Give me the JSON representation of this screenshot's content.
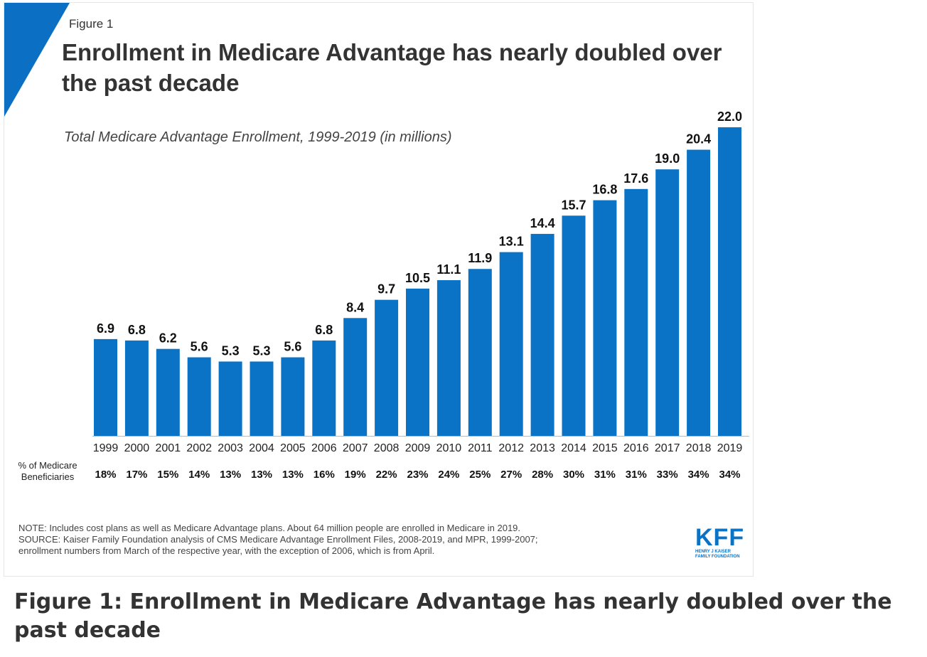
{
  "figure_label": "Figure 1",
  "title": "Enrollment in Medicare Advantage has nearly doubled over the past decade",
  "chart_data": {
    "type": "bar",
    "title": "Enrollment in Medicare Advantage has nearly doubled over the past decade",
    "subtitle": "Total Medicare Advantage Enrollment, 1999-2019 (in millions)",
    "categories": [
      "1999",
      "2000",
      "2001",
      "2002",
      "2003",
      "2004",
      "2005",
      "2006",
      "2007",
      "2008",
      "2009",
      "2010",
      "2011",
      "2012",
      "2013",
      "2014",
      "2015",
      "2016",
      "2017",
      "2018",
      "2019"
    ],
    "values": [
      6.9,
      6.8,
      6.2,
      5.6,
      5.3,
      5.3,
      5.6,
      6.8,
      8.4,
      9.7,
      10.5,
      11.1,
      11.9,
      13.1,
      14.4,
      15.7,
      16.8,
      17.6,
      19.0,
      20.4,
      22.0
    ],
    "value_labels": [
      "6.9",
      "6.8",
      "6.2",
      "5.6",
      "5.3",
      "5.3",
      "5.6",
      "6.8",
      "8.4",
      "9.7",
      "10.5",
      "11.1",
      "11.9",
      "13.1",
      "14.4",
      "15.7",
      "16.8",
      "17.6",
      "19.0",
      "20.4",
      "22.0"
    ],
    "ylim": [
      0,
      22
    ],
    "xlabel": "",
    "ylabel": "",
    "grid": false,
    "bar_color": "#0b73c6",
    "secondary_row": {
      "label_line1": "% of Medicare",
      "label_line2": "Beneficiaries",
      "values": [
        "18%",
        "17%",
        "15%",
        "14%",
        "13%",
        "13%",
        "13%",
        "16%",
        "19%",
        "22%",
        "23%",
        "24%",
        "25%",
        "27%",
        "28%",
        "30%",
        "31%",
        "31%",
        "33%",
        "34%",
        "34%"
      ]
    }
  },
  "note": "NOTE: Includes cost plans as well as Medicare Advantage plans. About 64 million people are enrolled in Medicare in 2019.",
  "source_line1": "SOURCE: Kaiser Family Foundation analysis of CMS Medicare Advantage Enrollment Files, 2008-2019, and MPR, 1999-2007;",
  "source_line2": "enrollment numbers from March of the respective year, with the exception of 2006, which is from April.",
  "logo": {
    "text": "KFF",
    "sub_line1": "HENRY J KAISER",
    "sub_line2": "FAMILY FOUNDATION",
    "color": "#0b73c6"
  },
  "caption": "Figure 1: Enrollment in Medicare Advantage has nearly doubled over the past decade"
}
